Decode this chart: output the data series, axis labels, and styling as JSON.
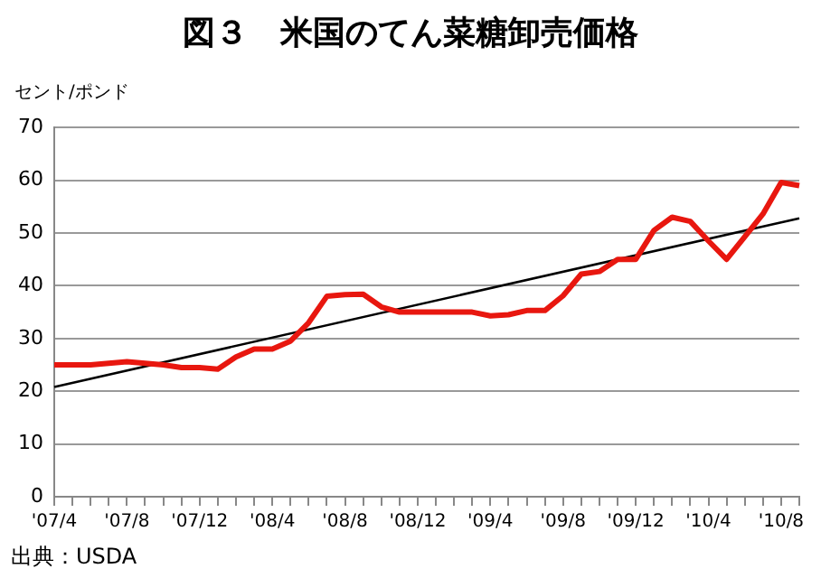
{
  "chart_data": {
    "type": "line",
    "title": "図３　米国のてん菜糖卸売価格",
    "ylabel": "セント/ポンド",
    "annotations": [
      "出典：USDA"
    ],
    "categories": [
      "'07/4",
      null,
      null,
      null,
      "'07/8",
      null,
      null,
      null,
      "'07/12",
      null,
      null,
      null,
      "'08/4",
      null,
      null,
      null,
      "'08/8",
      null,
      null,
      null,
      "'08/12",
      null,
      null,
      null,
      "'09/4",
      null,
      null,
      null,
      "'09/8",
      null,
      null,
      null,
      "'09/12",
      null,
      null,
      null,
      "'10/4",
      null,
      null,
      null,
      "'10/8",
      null
    ],
    "series": [
      {
        "color": "#e8170f",
        "values": [
          25,
          25,
          25,
          25.3,
          25.6,
          25.3,
          25,
          24.5,
          24.5,
          24.2,
          26.5,
          28,
          28,
          29.5,
          33,
          38,
          38.3,
          38.4,
          36,
          35,
          35,
          35,
          35,
          35,
          34.3,
          34.5,
          35.3,
          35.3,
          38.1,
          42.2,
          42.7,
          45,
          45,
          50.5,
          53,
          52.2,
          48.5,
          45,
          49.3,
          53.6,
          59.6,
          59
        ]
      },
      {
        "color": "#000000",
        "values": [
          20.8,
          null,
          null,
          null,
          null,
          null,
          null,
          null,
          null,
          null,
          null,
          null,
          null,
          null,
          null,
          null,
          null,
          null,
          null,
          null,
          null,
          null,
          null,
          null,
          null,
          null,
          null,
          null,
          null,
          null,
          null,
          null,
          null,
          null,
          null,
          null,
          null,
          null,
          null,
          null,
          null,
          52.8
        ]
      }
    ],
    "ylim": [
      0,
      70
    ],
    "yticks": [
      0,
      10,
      20,
      30,
      40,
      50,
      60,
      70
    ],
    "grid": "y",
    "legend": false,
    "marker": "none"
  }
}
